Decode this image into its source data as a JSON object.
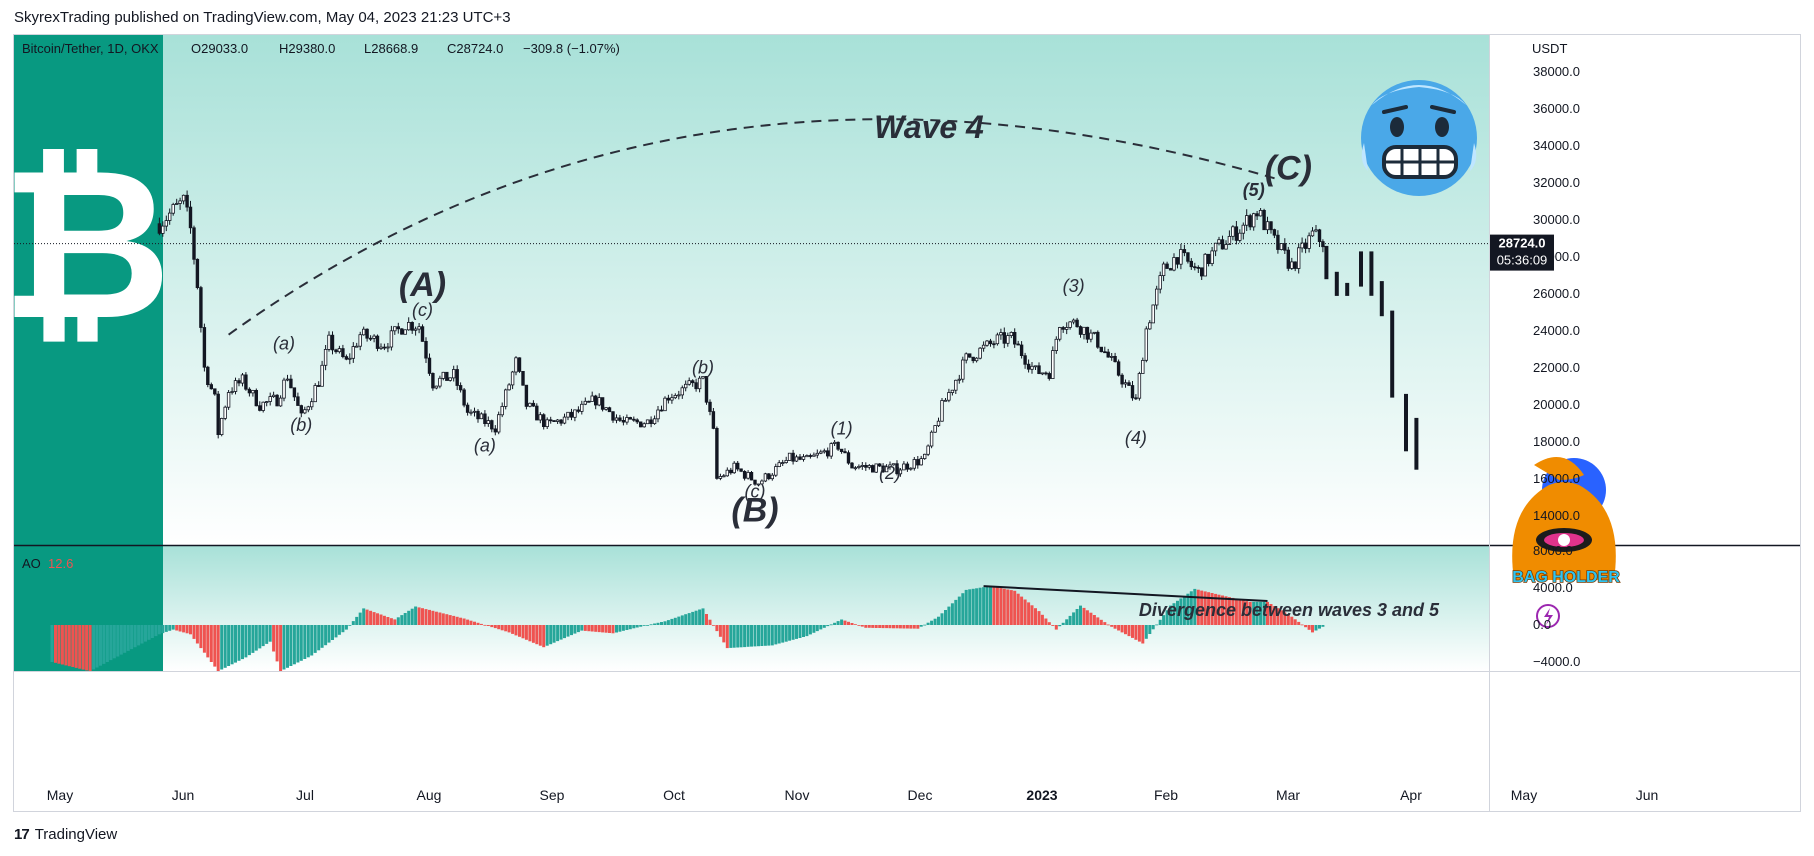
{
  "header": {
    "text": "SkyrexTrading published on TradingView.com, May 04, 2023 21:23 UTC+3"
  },
  "footer": {
    "brand": "TradingView"
  },
  "legend": {
    "symbol": "Bitcoin/Tether, 1D, OKX",
    "open": "O29033.0",
    "high": "H29380.0",
    "low": "L28668.9",
    "close": "C28724.0",
    "change": "−309.8 (−1.07%)"
  },
  "price_tag": {
    "price": "28724.0",
    "countdown": "05:36:09"
  },
  "indicator": {
    "name": "AO",
    "value": "12.6"
  },
  "colors": {
    "up": "#26a69a",
    "down": "#ef5350",
    "accent": "#089981",
    "bg_top": "#a8e1d8",
    "bg_bottom": "#ffffff"
  },
  "annotations": {
    "wave_title": "Wave 4",
    "divergence": "Divergence between waves 3 and 5",
    "bag_holder": "BAG HOLDER"
  },
  "chart_data": [
    {
      "type": "candlestick",
      "title": "Bitcoin/Tether, 1D, OKX",
      "unit": "USDT",
      "ylim": [
        13000,
        39000
      ],
      "y_ticks": [
        "38000.0",
        "36000.0",
        "34000.0",
        "32000.0",
        "30000.0",
        "28000.0",
        "26000.0",
        "24000.0",
        "22000.0",
        "20000.0",
        "18000.0",
        "16000.0",
        "14000.0"
      ],
      "x_ticks": [
        "May",
        "Jun",
        "Jul",
        "Aug",
        "Sep",
        "Oct",
        "Nov",
        "Dec",
        "2023",
        "Feb",
        "Mar",
        "Apr",
        "May",
        "Jun"
      ],
      "last_price": 28724.0,
      "close_path": [
        [
          "2022-06-01",
          29800
        ],
        [
          "2022-06-05",
          30500
        ],
        [
          "2022-06-08",
          31000
        ],
        [
          "2022-06-10",
          29500
        ],
        [
          "2022-06-12",
          26500
        ],
        [
          "2022-06-14",
          22000
        ],
        [
          "2022-06-17",
          20300
        ],
        [
          "2022-06-18",
          18500
        ],
        [
          "2022-06-21",
          20800
        ],
        [
          "2022-06-25",
          21300
        ],
        [
          "2022-06-30",
          20000
        ],
        [
          "2022-07-05",
          20300
        ],
        [
          "2022-07-08",
          21600
        ],
        [
          "2022-07-12",
          19300
        ],
        [
          "2022-07-17",
          21300
        ],
        [
          "2022-07-20",
          23400
        ],
        [
          "2022-07-25",
          22300
        ],
        [
          "2022-07-29",
          23800
        ],
        [
          "2022-08-05",
          23300
        ],
        [
          "2022-08-11",
          24400
        ],
        [
          "2022-08-15",
          24300
        ],
        [
          "2022-08-19",
          21200
        ],
        [
          "2022-08-25",
          21600
        ],
        [
          "2022-08-29",
          19600
        ],
        [
          "2022-09-06",
          18800
        ],
        [
          "2022-09-12",
          22300
        ],
        [
          "2022-09-15",
          20000
        ],
        [
          "2022-09-21",
          18900
        ],
        [
          "2022-09-28",
          19400
        ],
        [
          "2022-10-05",
          20300
        ],
        [
          "2022-10-13",
          19000
        ],
        [
          "2022-10-20",
          19100
        ],
        [
          "2022-10-26",
          20500
        ],
        [
          "2022-10-30",
          20800
        ],
        [
          "2022-11-05",
          21300
        ],
        [
          "2022-11-08",
          18500
        ],
        [
          "2022-11-09",
          16000
        ],
        [
          "2022-11-14",
          16600
        ],
        [
          "2022-11-21",
          15800
        ],
        [
          "2022-11-30",
          17100
        ],
        [
          "2022-12-05",
          17000
        ],
        [
          "2022-12-14",
          17800
        ],
        [
          "2022-12-18",
          16700
        ],
        [
          "2022-12-31",
          16550
        ],
        [
          "2023-01-08",
          17100
        ],
        [
          "2023-01-13",
          19900
        ],
        [
          "2023-01-20",
          22500
        ],
        [
          "2023-01-29",
          23500
        ],
        [
          "2023-02-02",
          23600
        ],
        [
          "2023-02-09",
          21800
        ],
        [
          "2023-02-13",
          21800
        ],
        [
          "2023-02-16",
          24500
        ],
        [
          "2023-02-21",
          24400
        ],
        [
          "2023-02-27",
          23400
        ],
        [
          "2023-03-03",
          22300
        ],
        [
          "2023-03-10",
          20200
        ],
        [
          "2023-03-13",
          24100
        ],
        [
          "2023-03-18",
          27300
        ],
        [
          "2023-03-22",
          28100
        ],
        [
          "2023-03-28",
          27200
        ],
        [
          "2023-04-02",
          28400
        ],
        [
          "2023-04-10",
          29700
        ],
        [
          "2023-04-14",
          30500
        ],
        [
          "2023-04-19",
          28800
        ],
        [
          "2023-04-24",
          27500
        ],
        [
          "2023-04-30",
          29200
        ],
        [
          "2023-05-04",
          28724
        ]
      ],
      "projection_bars": [
        [
          "2023-05-04",
          26800,
          28600
        ],
        [
          "2023-05-07",
          25900,
          27200
        ],
        [
          "2023-05-10",
          25900,
          26600
        ],
        [
          "2023-05-14",
          26400,
          28300
        ],
        [
          "2023-05-17",
          25900,
          28300
        ],
        [
          "2023-05-20",
          24800,
          26700
        ],
        [
          "2023-05-23",
          20400,
          25100
        ],
        [
          "2023-05-27",
          17500,
          20600
        ],
        [
          "2023-05-30",
          16500,
          19300
        ]
      ],
      "wave_labels": [
        {
          "label": "(A)",
          "date": "2022-08-16",
          "price": 25900
        },
        {
          "label": "(c)",
          "date": "2022-08-16",
          "price": 24800
        },
        {
          "label": "(a)",
          "date": "2022-07-07",
          "price": 23000
        },
        {
          "label": "(b)",
          "date": "2022-07-12",
          "price": 18600
        },
        {
          "label": "(a)",
          "date": "2022-09-03",
          "price": 17500
        },
        {
          "label": "(b)",
          "date": "2022-11-05",
          "price": 21700
        },
        {
          "label": "(c)",
          "date": "2022-11-20",
          "price": 15000
        },
        {
          "label": "(B)",
          "date": "2022-11-20",
          "price": 13700
        },
        {
          "label": "(1)",
          "date": "2022-12-15",
          "price": 18400
        },
        {
          "label": "(2)",
          "date": "2022-12-29",
          "price": 16000
        },
        {
          "label": "(3)",
          "date": "2023-02-20",
          "price": 26100
        },
        {
          "label": "(4)",
          "date": "2023-03-10",
          "price": 17900
        },
        {
          "label": "(5)",
          "date": "2023-04-13",
          "price": 31300
        },
        {
          "label": "(C)",
          "date": "2023-04-23",
          "price": 32200
        }
      ],
      "arc": [
        [
          "2022-06-21",
          23800
        ],
        [
          "2022-10-31",
          34800
        ],
        [
          "2023-04-20",
          32200
        ]
      ]
    },
    {
      "type": "bar",
      "title": "AO",
      "ylim": [
        -5500,
        9000
      ],
      "y_ticks": [
        "8000.0",
        "4000.0",
        "0.0",
        "−4000.0"
      ],
      "last_value": 12.6,
      "profile": [
        [
          "2022-05-01",
          -4000
        ],
        [
          "2022-05-12",
          -5000
        ],
        [
          "2022-06-01",
          -1000
        ],
        [
          "2022-06-05",
          -500
        ],
        [
          "2022-06-10",
          -1000
        ],
        [
          "2022-06-18",
          -5000
        ],
        [
          "2022-06-26",
          -3500
        ],
        [
          "2022-07-03",
          -1800
        ],
        [
          "2022-07-06",
          -5000
        ],
        [
          "2022-07-15",
          -3300
        ],
        [
          "2022-07-25",
          -500
        ],
        [
          "2022-07-30",
          1800
        ],
        [
          "2022-08-08",
          600
        ],
        [
          "2022-08-14",
          2000
        ],
        [
          "2022-08-28",
          700
        ],
        [
          "2022-09-10",
          -800
        ],
        [
          "2022-09-20",
          -2400
        ],
        [
          "2022-10-01",
          -600
        ],
        [
          "2022-10-10",
          -900
        ],
        [
          "2022-10-20",
          0
        ],
        [
          "2022-10-25",
          400
        ],
        [
          "2022-11-05",
          1800
        ],
        [
          "2022-11-12",
          -2500
        ],
        [
          "2022-11-25",
          -2200
        ],
        [
          "2022-12-05",
          -1200
        ],
        [
          "2022-12-15",
          600
        ],
        [
          "2022-12-22",
          -300
        ],
        [
          "2023-01-06",
          -400
        ],
        [
          "2023-01-12",
          900
        ],
        [
          "2023-01-20",
          3800
        ],
        [
          "2023-01-27",
          4200
        ],
        [
          "2023-02-03",
          3700
        ],
        [
          "2023-02-10",
          1500
        ],
        [
          "2023-02-15",
          -500
        ],
        [
          "2023-02-22",
          2100
        ],
        [
          "2023-03-03",
          -200
        ],
        [
          "2023-03-12",
          -2000
        ],
        [
          "2023-03-20",
          2100
        ],
        [
          "2023-03-27",
          3900
        ],
        [
          "2023-04-05",
          3100
        ],
        [
          "2023-04-12",
          2500
        ],
        [
          "2023-04-17",
          2500
        ],
        [
          "2023-04-24",
          900
        ],
        [
          "2023-04-30",
          -800
        ],
        [
          "2023-05-04",
          12.6
        ]
      ],
      "divergence_line": [
        [
          "2023-01-25",
          4200
        ],
        [
          "2023-04-17",
          2600
        ]
      ]
    }
  ]
}
